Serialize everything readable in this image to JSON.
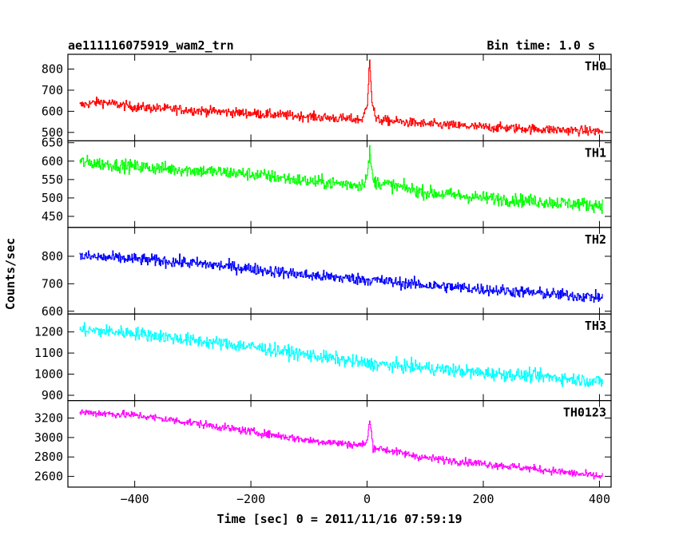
{
  "header": {
    "title": "ae111116075919_wam2_trn",
    "bin_time": "Bin time: 1.0 s"
  },
  "axes": {
    "ylabel": "Counts/sec",
    "xlabel": "Time [sec] 0 = 2011/11/16 07:59:19"
  },
  "chart_data": {
    "type": "line",
    "title": "ae111116075919_wam2_trn",
    "xlabel": "Time [sec] 0 = 2011/11/16 07:59:19",
    "ylabel": "Counts/sec",
    "xlim": [
      -515,
      420
    ],
    "x_ticks": [
      -400,
      -200,
      0,
      200,
      400
    ],
    "x_tick_labels": [
      "−400",
      "−200",
      "0",
      "200",
      "400"
    ],
    "bin_time_s": 1.0,
    "grid": false,
    "panels": [
      {
        "name": "TH0",
        "color": "#ff0000",
        "ylim": [
          460,
          870
        ],
        "y_ticks": [
          500,
          600,
          700,
          800
        ],
        "trend": [
          [
            -495,
            628
          ],
          [
            -460,
            645
          ],
          [
            -400,
            620
          ],
          [
            -300,
            605
          ],
          [
            -200,
            590
          ],
          [
            -100,
            575
          ],
          [
            -10,
            560
          ],
          [
            0,
            620
          ],
          [
            4,
            860
          ],
          [
            8,
            650
          ],
          [
            15,
            560
          ],
          [
            100,
            540
          ],
          [
            200,
            525
          ],
          [
            300,
            515
          ],
          [
            400,
            505
          ],
          [
            405,
            505
          ]
        ],
        "noise_amplitude": 40
      },
      {
        "name": "TH1",
        "color": "#00ff00",
        "ylim": [
          420,
          655
        ],
        "y_ticks": [
          450,
          500,
          550,
          600,
          650
        ],
        "trend": [
          [
            -495,
            598
          ],
          [
            -400,
            585
          ],
          [
            -300,
            575
          ],
          [
            -200,
            565
          ],
          [
            -100,
            545
          ],
          [
            -10,
            535
          ],
          [
            0,
            560
          ],
          [
            4,
            625
          ],
          [
            10,
            545
          ],
          [
            100,
            515
          ],
          [
            200,
            500
          ],
          [
            300,
            490
          ],
          [
            400,
            480
          ],
          [
            405,
            480
          ]
        ],
        "noise_amplitude": 32
      },
      {
        "name": "TH2",
        "color": "#0000ff",
        "ylim": [
          590,
          905
        ],
        "y_ticks": [
          600,
          700,
          800
        ],
        "trend": [
          [
            -495,
            800
          ],
          [
            -400,
            790
          ],
          [
            -300,
            775
          ],
          [
            -200,
            755
          ],
          [
            -100,
            730
          ],
          [
            0,
            715
          ],
          [
            100,
            695
          ],
          [
            200,
            680
          ],
          [
            300,
            665
          ],
          [
            400,
            650
          ],
          [
            405,
            650
          ]
        ],
        "noise_amplitude": 38
      },
      {
        "name": "TH3",
        "color": "#00ffff",
        "ylim": [
          875,
          1285
        ],
        "y_ticks": [
          900,
          1000,
          1100,
          1200
        ],
        "trend": [
          [
            -495,
            1210
          ],
          [
            -400,
            1195
          ],
          [
            -300,
            1160
          ],
          [
            -200,
            1130
          ],
          [
            -100,
            1090
          ],
          [
            0,
            1050
          ],
          [
            100,
            1030
          ],
          [
            200,
            1005
          ],
          [
            300,
            990
          ],
          [
            400,
            965
          ],
          [
            405,
            965
          ]
        ],
        "noise_amplitude": 55
      },
      {
        "name": "TH0123",
        "color": "#ff00ff",
        "ylim": [
          2490,
          3380
        ],
        "y_ticks": [
          2600,
          2800,
          3000,
          3200
        ],
        "trend": [
          [
            -495,
            3260
          ],
          [
            -400,
            3230
          ],
          [
            -300,
            3150
          ],
          [
            -200,
            3060
          ],
          [
            -100,
            2970
          ],
          [
            -10,
            2920
          ],
          [
            0,
            2960
          ],
          [
            4,
            3180
          ],
          [
            10,
            2900
          ],
          [
            100,
            2790
          ],
          [
            200,
            2730
          ],
          [
            300,
            2670
          ],
          [
            400,
            2600
          ],
          [
            405,
            2600
          ]
        ],
        "noise_amplitude": 70
      }
    ]
  }
}
